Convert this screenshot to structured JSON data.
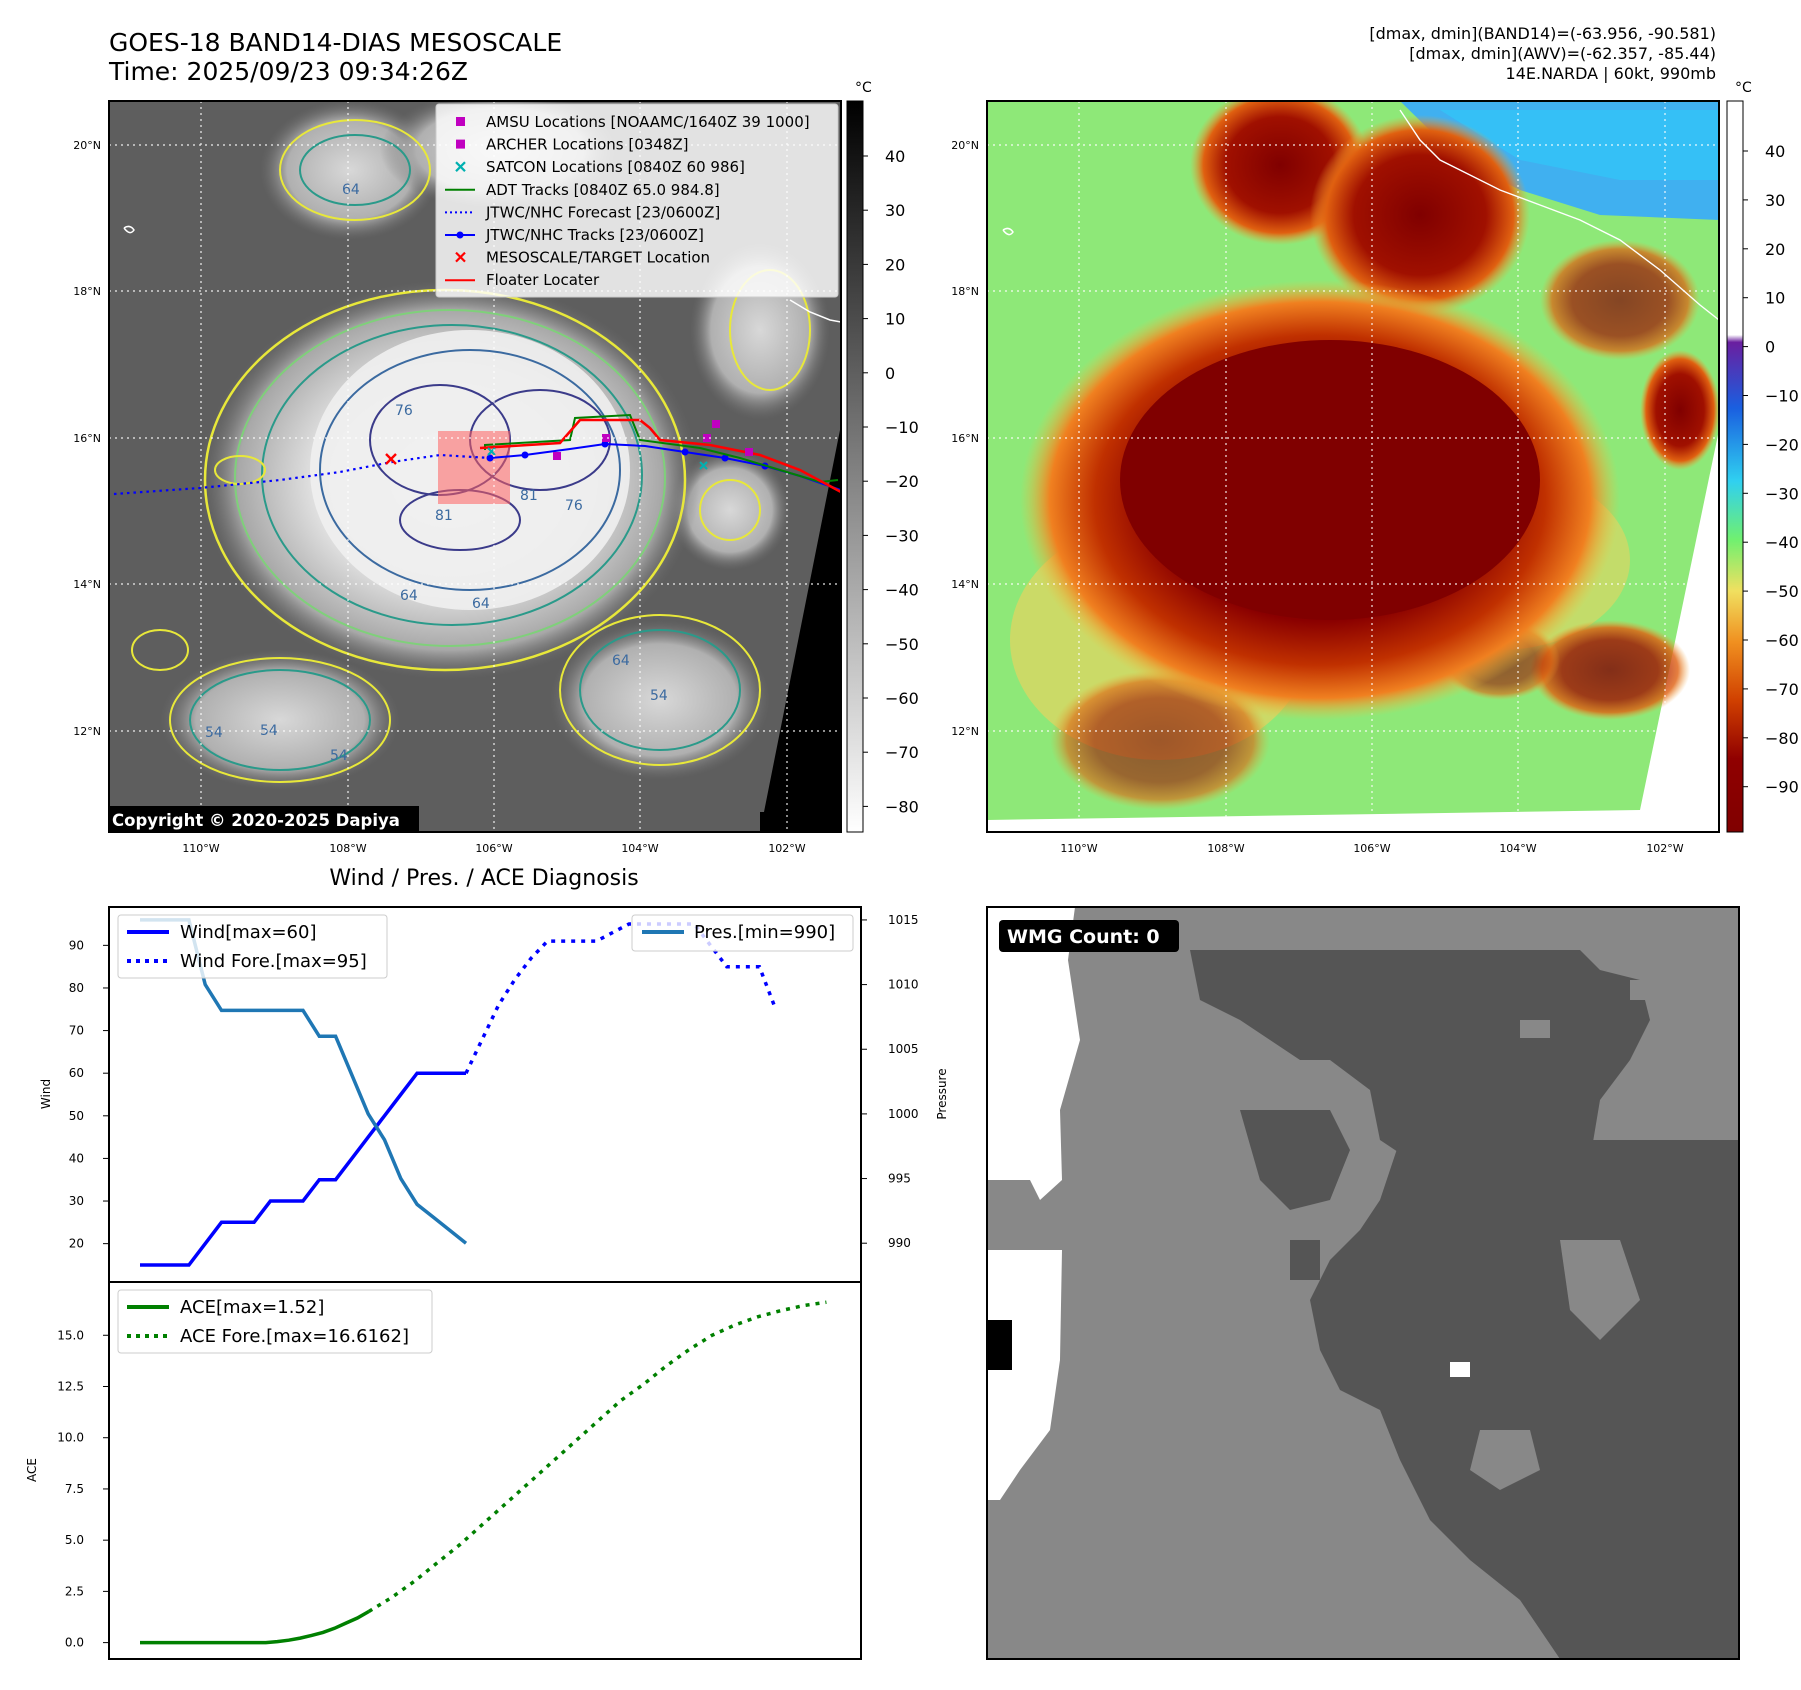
{
  "header": {
    "title_line1": "GOES-18 BAND14-DIAS MESOSCALE",
    "title_line2": "Time: 2025/09/23 09:34:26Z",
    "info_line1": "[dmax, dmin](BAND14)=(-63.956, -90.581)",
    "info_line2": "[dmax, dmin](AWV)=(-62.357, -85.44)",
    "info_line3": "14E.NARDA | 60kt, 990mb",
    "copyright": "Copyright © 2020-2025 Dapiya",
    "wmg_label": "WMG Count: 0",
    "diag_title": "Wind / Pres. / ACE Diagnosis"
  },
  "maps": {
    "lat_ticks": [
      "20°N",
      "18°N",
      "16°N",
      "14°N",
      "12°N"
    ],
    "lon_ticks": [
      "110°W",
      "108°W",
      "106°W",
      "104°W",
      "102°W"
    ],
    "left_cbar": {
      "unit": "°C",
      "ticks": [
        "40",
        "30",
        "20",
        "10",
        "0",
        "−10",
        "−20",
        "−30",
        "−40",
        "−50",
        "−60",
        "−70",
        "−80"
      ]
    },
    "right_cbar": {
      "unit": "°C",
      "ticks": [
        "40",
        "30",
        "20",
        "10",
        "0",
        "−10",
        "−20",
        "−30",
        "−40",
        "−50",
        "−60",
        "−70",
        "−80",
        "−90"
      ]
    },
    "contour_labels": [
      "64",
      "54",
      "81",
      "76",
      "64",
      "64",
      "54",
      "54",
      "64",
      "54",
      "76",
      "81"
    ],
    "legend": [
      {
        "label": "AMSU Locations [NOAAMC/1640Z 39 1000]",
        "color": "#c000c0",
        "kind": "square"
      },
      {
        "label": "ARCHER Locations [0348Z]",
        "color": "#c000c0",
        "kind": "square"
      },
      {
        "label": "SATCON Locations [0840Z 60 986]",
        "color": "#00b0b0",
        "kind": "x"
      },
      {
        "label": "ADT Tracks [0840Z 65.0 984.8]",
        "color": "#008000",
        "kind": "line"
      },
      {
        "label": "JTWC/NHC Forecast [23/0600Z]",
        "color": "#0000ff",
        "kind": "dotted"
      },
      {
        "label": "JTWC/NHC Tracks [23/0600Z]",
        "color": "#0000ff",
        "kind": "line-dot"
      },
      {
        "label": "MESOSCALE/TARGET Location",
        "color": "#ff0000",
        "kind": "x"
      },
      {
        "label": "Floater Locater",
        "color": "#ff0000",
        "kind": "line"
      }
    ]
  },
  "chart_data": [
    {
      "type": "line",
      "title": "Wind / Pres. / ACE Diagnosis",
      "xlabel": "",
      "ylabel": "Wind",
      "y2label": "Pressure",
      "ylim": [
        11,
        99
      ],
      "y2lim": [
        987,
        1016
      ],
      "yticks": [
        20,
        30,
        40,
        50,
        60,
        70,
        80,
        90
      ],
      "y2ticks": [
        990,
        995,
        1000,
        1005,
        1010,
        1015
      ],
      "xlim": [
        0,
        41
      ],
      "series": [
        {
          "name": "Wind[max=60]",
          "color": "#0000ff",
          "style": "solid",
          "axis": "left",
          "x": [
            0,
            6,
            10,
            14,
            16,
            20,
            22,
            24,
            26,
            28,
            30,
            32,
            34,
            36,
            38,
            40
          ],
          "values": [
            15,
            15,
            25,
            25,
            30,
            30,
            35,
            35,
            40,
            45,
            50,
            55,
            60,
            60,
            60,
            60
          ]
        },
        {
          "name": "Wind Fore.[max=95]",
          "color": "#0000ff",
          "style": "dotted",
          "axis": "left",
          "x": [
            40,
            42,
            44,
            46,
            48,
            50,
            52,
            56,
            60,
            64,
            68,
            70,
            72,
            74,
            76,
            78
          ],
          "values": [
            60,
            68,
            76,
            82,
            87,
            91,
            91,
            91,
            95,
            95,
            95,
            90,
            85,
            85,
            85,
            75
          ]
        },
        {
          "name": "Pres.[min=990]",
          "color": "#1f77b4",
          "style": "solid",
          "axis": "right",
          "x": [
            0,
            6,
            8,
            10,
            12,
            14,
            16,
            18,
            20,
            22,
            24,
            26,
            28,
            30,
            32,
            34,
            36,
            38,
            40
          ],
          "values": [
            1015,
            1015,
            1010,
            1008,
            1008,
            1008,
            1008,
            1008,
            1008,
            1006,
            1006,
            1003,
            1000,
            998,
            995,
            993,
            992,
            991,
            990
          ]
        }
      ]
    },
    {
      "type": "line",
      "xlabel": "",
      "ylabel": "ACE",
      "ylim": [
        -0.8,
        17.6
      ],
      "yticks": [
        0.0,
        2.5,
        5.0,
        7.5,
        10.0,
        12.5,
        15.0
      ],
      "ytick_labels": [
        "0.0",
        "2.5",
        "5.0",
        "7.5",
        "10.0",
        "12.5",
        "15.0"
      ],
      "xlim": [
        0,
        41
      ],
      "series": [
        {
          "name": "ACE[max=1.52]",
          "color": "#008000",
          "style": "solid",
          "x": [
            0,
            22,
            24,
            26,
            28,
            30,
            32,
            34,
            36,
            38,
            40
          ],
          "values": [
            0,
            0,
            0.05,
            0.12,
            0.22,
            0.35,
            0.5,
            0.7,
            0.95,
            1.2,
            1.52
          ]
        },
        {
          "name": "ACE Fore.[max=16.6162]",
          "color": "#008000",
          "style": "dotted",
          "x": [
            40,
            44,
            48,
            52,
            56,
            60,
            64,
            68,
            72,
            76,
            80,
            84,
            88,
            92,
            96,
            100,
            104,
            108,
            112,
            116,
            120
          ],
          "values": [
            1.52,
            2.2,
            3.0,
            3.9,
            4.8,
            5.8,
            6.8,
            7.8,
            8.8,
            9.8,
            10.8,
            11.8,
            12.6,
            13.5,
            14.3,
            15.0,
            15.5,
            15.9,
            16.2,
            16.45,
            16.6162
          ]
        }
      ]
    }
  ]
}
